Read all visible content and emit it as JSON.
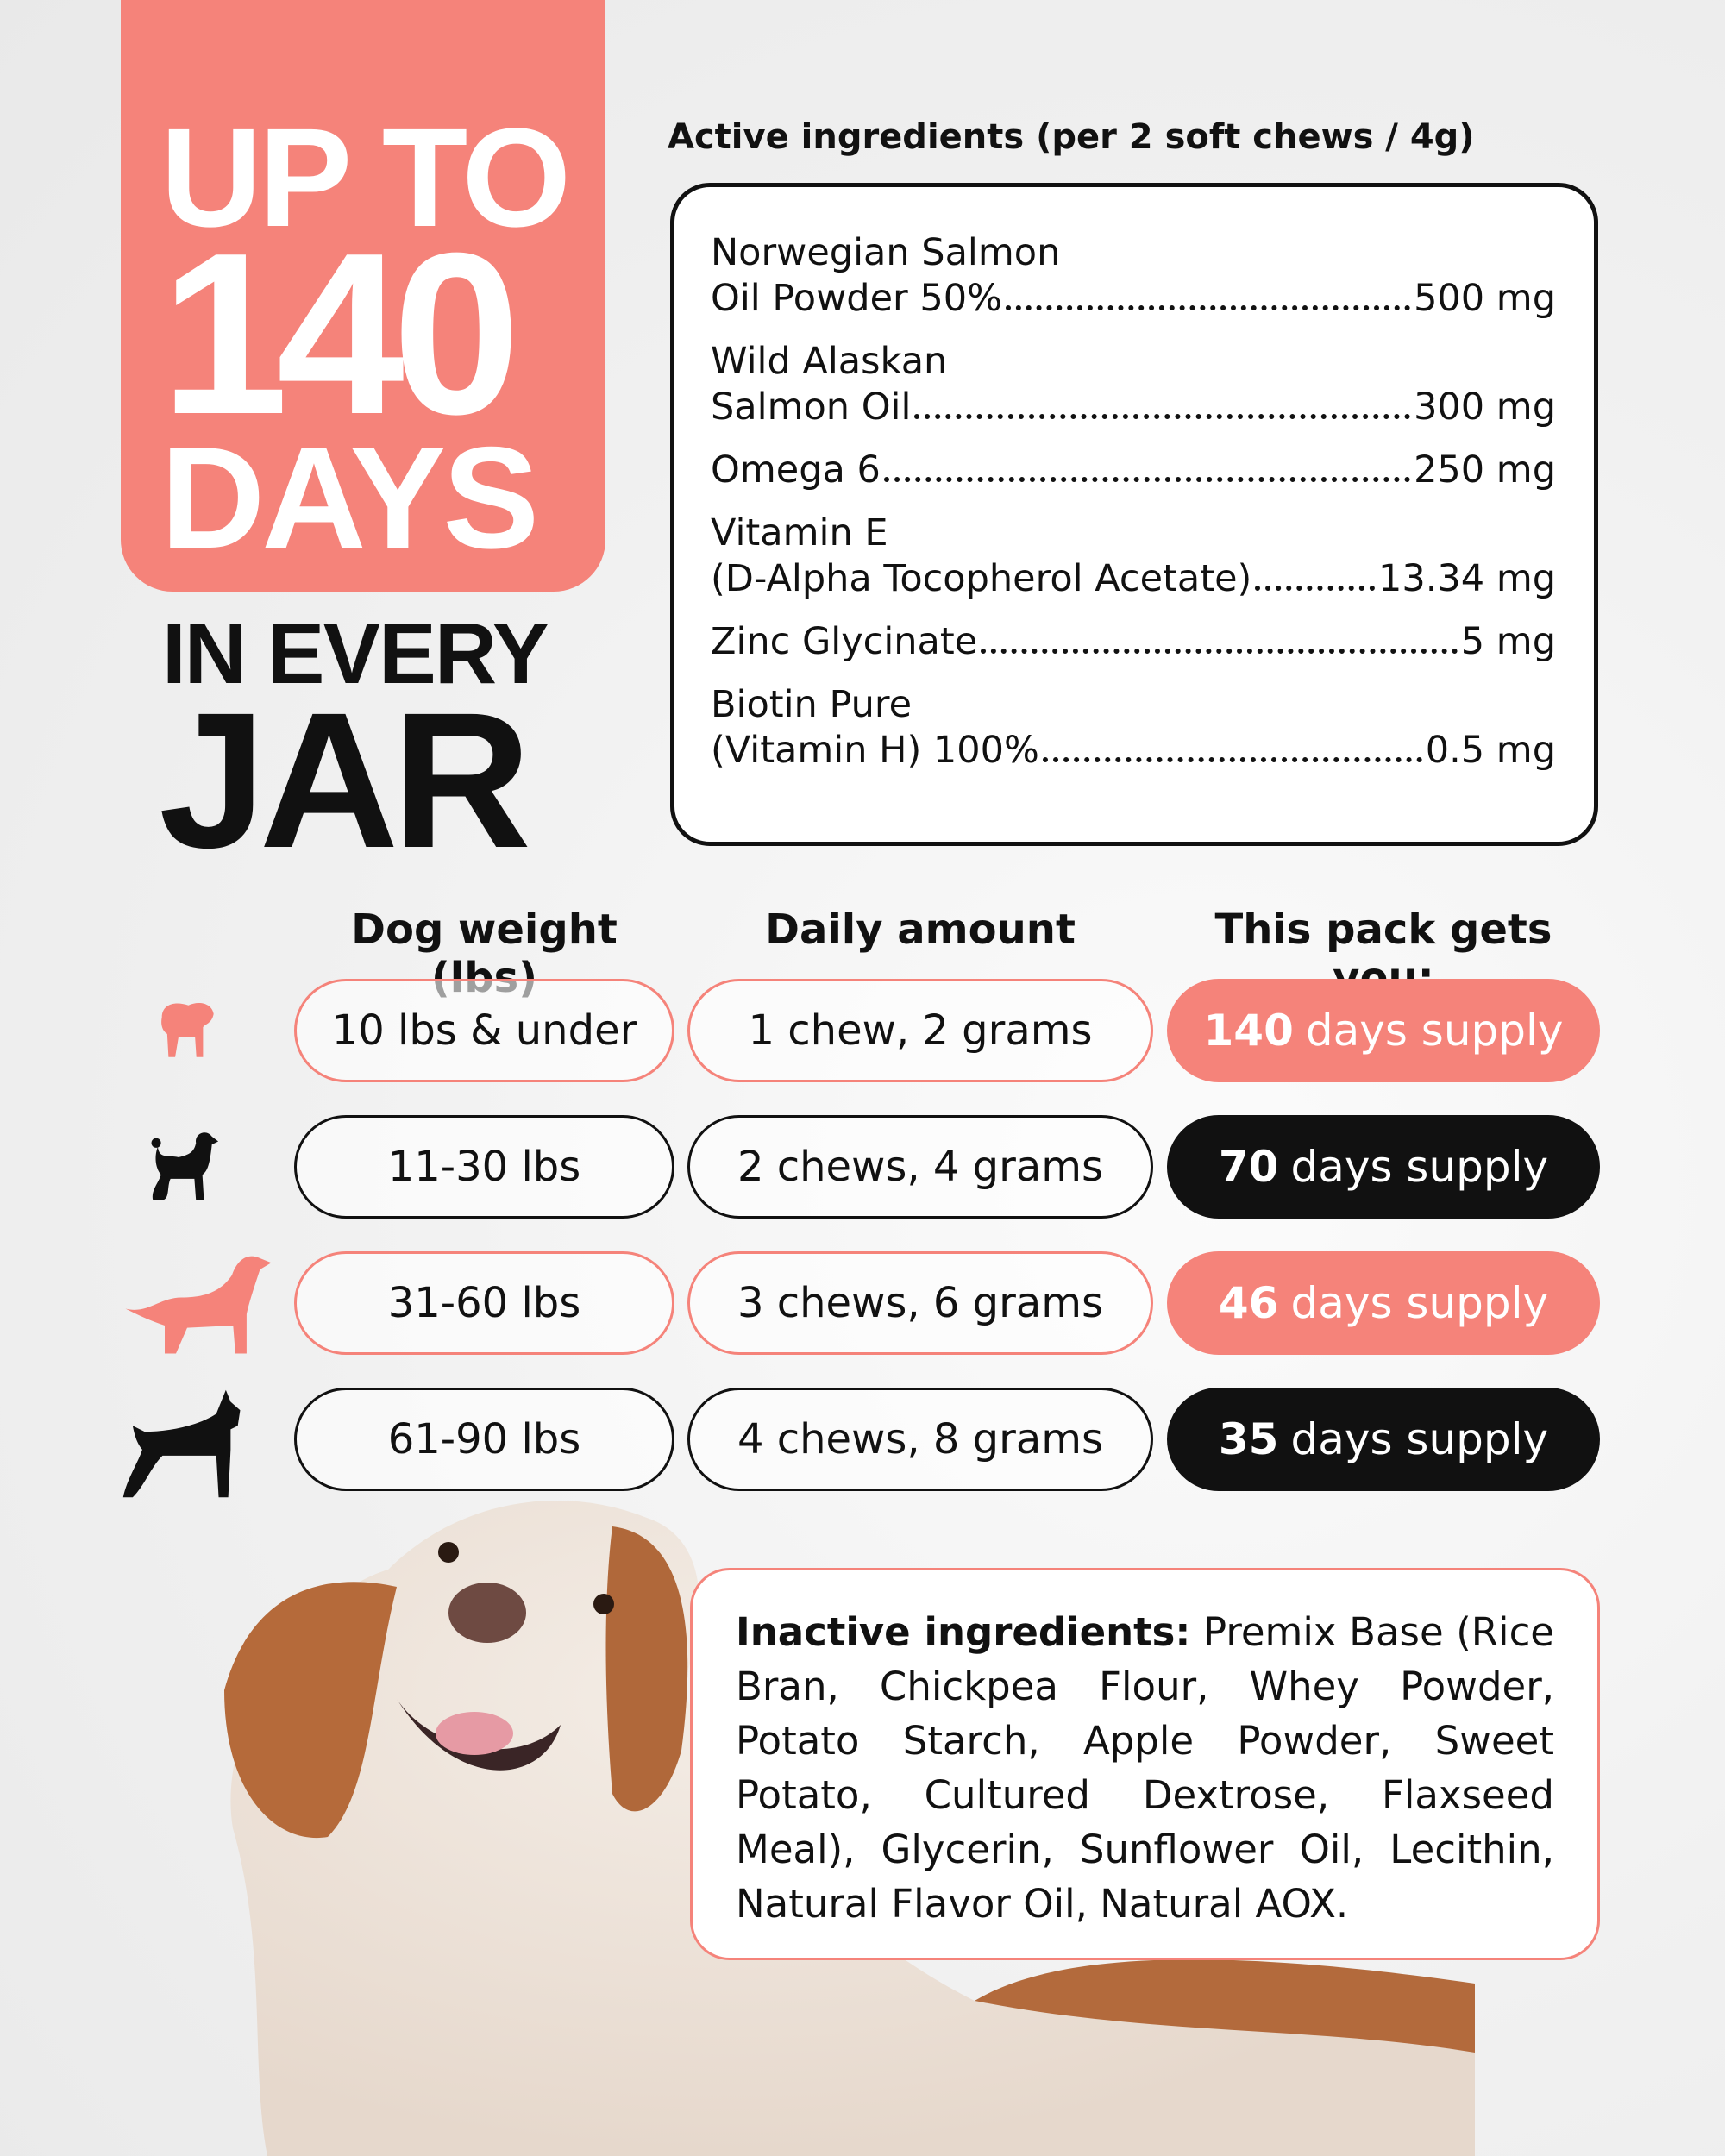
{
  "headline": {
    "line1": "UP TO",
    "line2": "140",
    "line3": "DAYS",
    "line4": "IN EVERY",
    "line5": "JAR"
  },
  "colors": {
    "accent": "#F5837A",
    "dark": "#111111"
  },
  "active": {
    "title": "Active ingredients (per 2 soft chews / 4g)",
    "items": [
      {
        "line1": "Norwegian Salmon",
        "name": "Oil Powder 50%",
        "amount": "500 mg"
      },
      {
        "line1": "Wild Alaskan",
        "name": "Salmon Oil",
        "amount": "300 mg"
      },
      {
        "line1": "",
        "name": "Omega 6",
        "amount": "250 mg"
      },
      {
        "line1": "Vitamin E",
        "name": "(D-Alpha Tocopherol Acetate)",
        "amount": "13.34 mg"
      },
      {
        "line1": "",
        "name": "Zinc Glycinate",
        "amount": "5 mg"
      },
      {
        "line1": "Biotin Pure",
        "name": "(Vitamin H) 100%",
        "amount": "0.5 mg"
      }
    ]
  },
  "table": {
    "headers": [
      "Dog weight (lbs)",
      "Daily amount",
      "This pack gets you:"
    ],
    "rows": [
      {
        "icon": "pug-icon",
        "weight": "10 lbs & under",
        "daily": "1 chew, 2 grams",
        "days": "140",
        "supply": "days supply",
        "style": "accent"
      },
      {
        "icon": "poodle-icon",
        "weight": "11-30 lbs",
        "daily": "2 chews, 4 grams",
        "days": "70",
        "supply": "days supply",
        "style": "dark"
      },
      {
        "icon": "setter-icon",
        "weight": "31-60 lbs",
        "daily": "3 chews, 6 grams",
        "days": "46",
        "supply": "days supply",
        "style": "accent"
      },
      {
        "icon": "boxer-icon",
        "weight": "61-90 lbs",
        "daily": "4 chews, 8 grams",
        "days": "35",
        "supply": "days supply",
        "style": "dark"
      }
    ]
  },
  "inactive": {
    "label": "Inactive ingredients:",
    "text": "Premix Base (Rice Bran, Chickpea Flour, Whey Powder, Potato Starch, Apple Powder, Sweet Potato, Cultured Dextrose, Flaxseed Meal), Glycerin, Sunflower Oil, Lecithin, Natural Flavor Oil, Natural AOX."
  }
}
